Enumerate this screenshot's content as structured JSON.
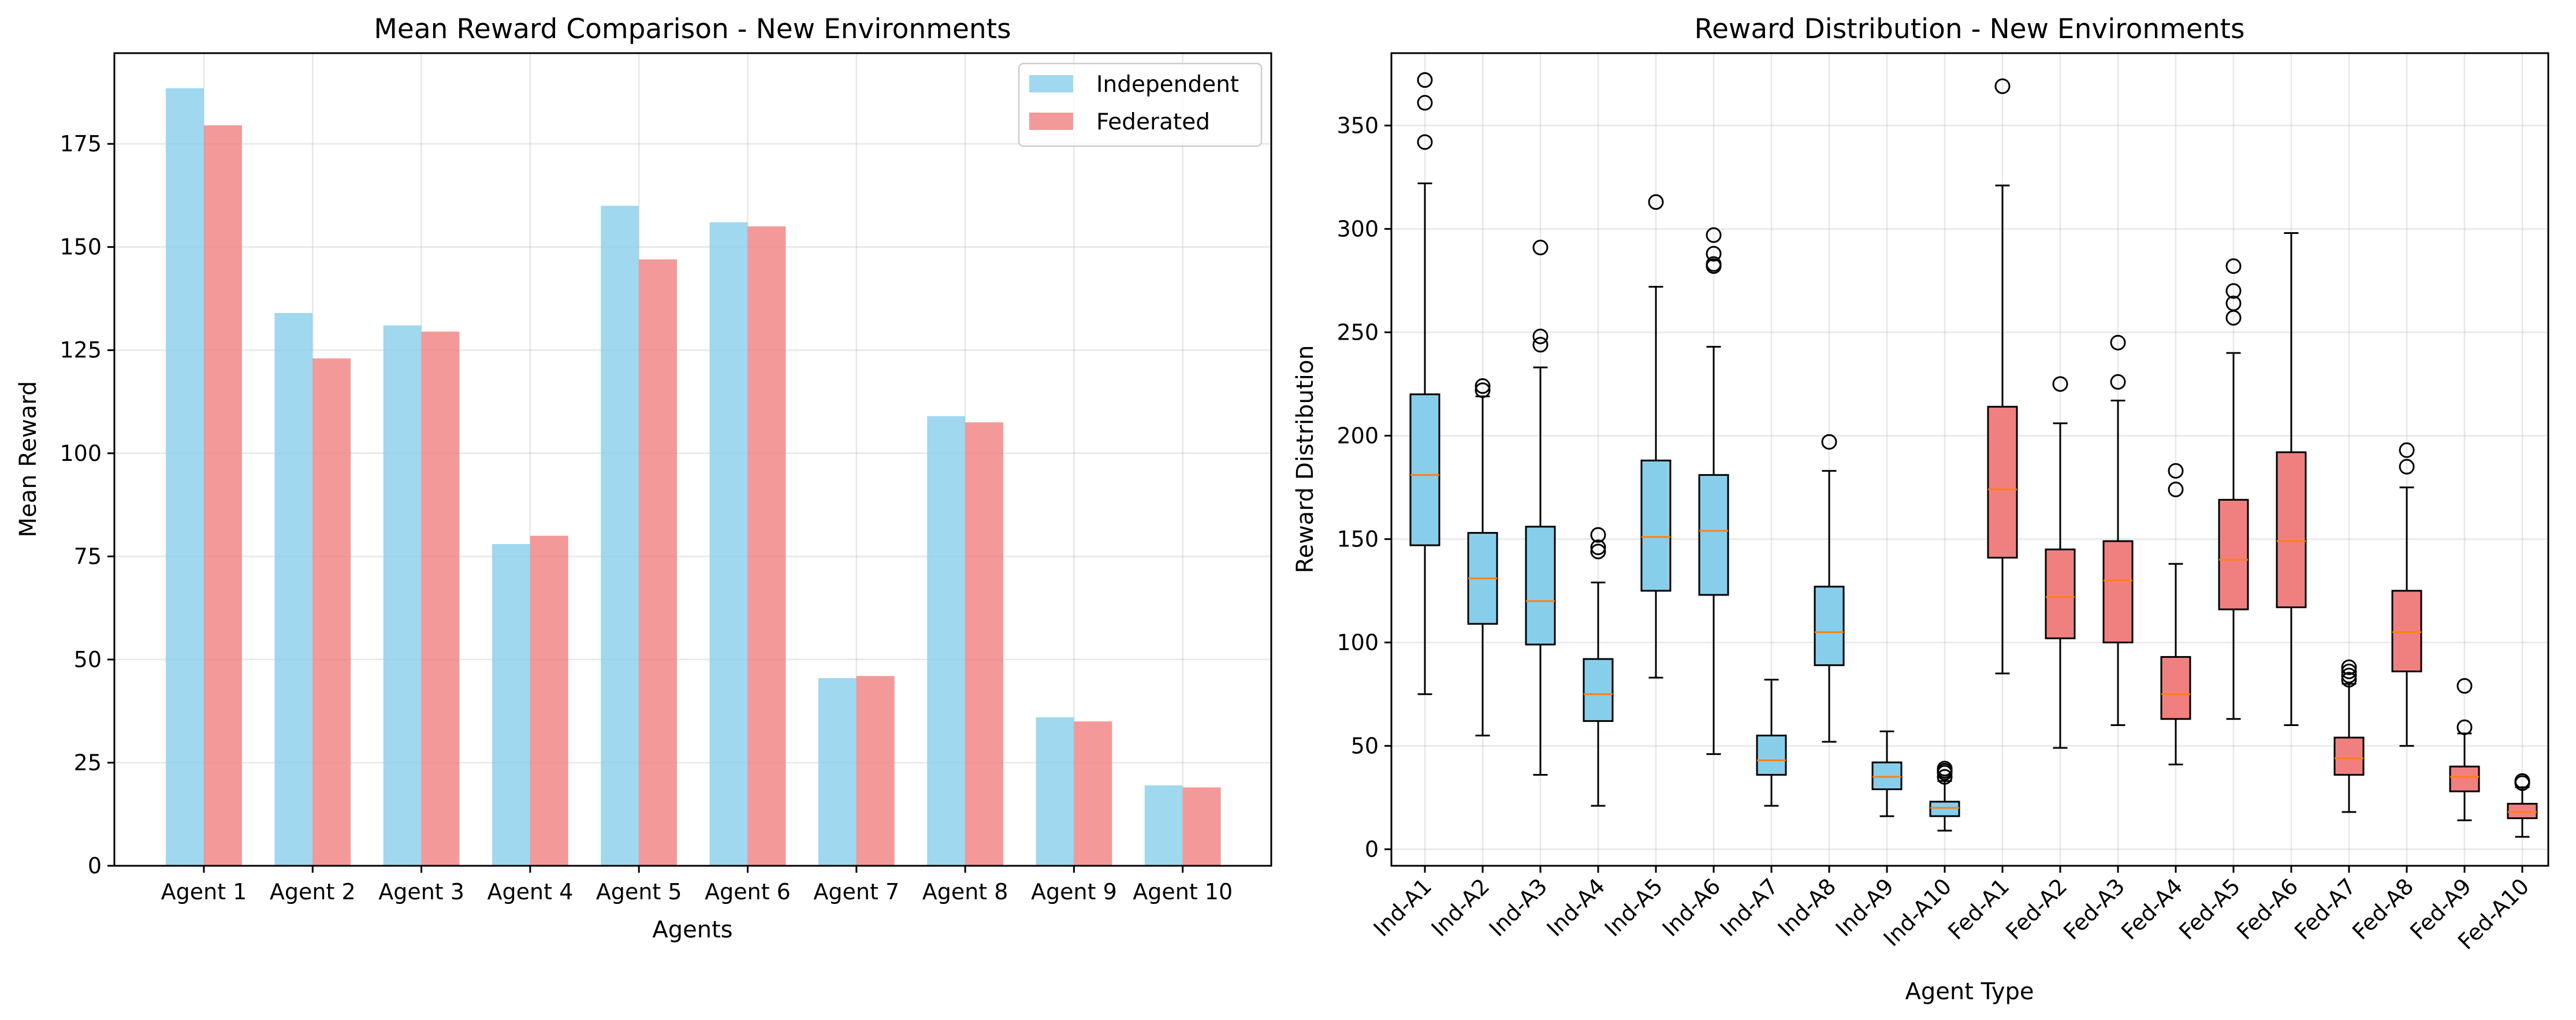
{
  "chart_data": [
    {
      "type": "bar",
      "title": "Mean Reward Comparison - New Environments",
      "xlabel": "Agents",
      "ylabel": "Mean Reward",
      "categories": [
        "Agent 1",
        "Agent 2",
        "Agent 3",
        "Agent 4",
        "Agent 5",
        "Agent 6",
        "Agent 7",
        "Agent 8",
        "Agent 9",
        "Agent 10"
      ],
      "series": [
        {
          "name": "Independent",
          "color": "#87ceeb",
          "values": [
            188.5,
            134,
            131,
            78,
            160,
            156,
            45.5,
            109,
            36,
            19.5
          ]
        },
        {
          "name": "Federated",
          "color": "#f08080",
          "values": [
            179.5,
            123,
            129.5,
            80,
            147,
            155,
            46,
            107.5,
            35,
            19
          ]
        }
      ],
      "ylim": [
        0,
        197
      ],
      "yticks": [
        0,
        25,
        50,
        75,
        100,
        125,
        150,
        175
      ],
      "grid": true,
      "legend": "top-right"
    },
    {
      "type": "box",
      "title": "Reward Distribution - New Environments",
      "xlabel": "Agent Type",
      "ylabel": "Reward Distribution",
      "ylim": [
        -8,
        385
      ],
      "yticks": [
        0,
        50,
        100,
        150,
        200,
        250,
        300,
        350
      ],
      "grid": true,
      "median_color": "#ff7f0e",
      "boxes": [
        {
          "label": "Ind-A1",
          "color": "#87ceeb",
          "whislo": 75,
          "q1": 147,
          "median": 181,
          "q3": 220,
          "whishi": 322,
          "fliers": [
            342,
            361,
            372
          ]
        },
        {
          "label": "Ind-A2",
          "color": "#87ceeb",
          "whislo": 55,
          "q1": 109,
          "median": 131,
          "q3": 153,
          "whishi": 219,
          "fliers": [
            222,
            224
          ]
        },
        {
          "label": "Ind-A3",
          "color": "#87ceeb",
          "whislo": 36,
          "q1": 99,
          "median": 120,
          "q3": 156,
          "whishi": 233,
          "fliers": [
            244,
            248,
            291
          ]
        },
        {
          "label": "Ind-A4",
          "color": "#87ceeb",
          "whislo": 21,
          "q1": 62,
          "median": 75,
          "q3": 92,
          "whishi": 129,
          "fliers": [
            144,
            146,
            152
          ]
        },
        {
          "label": "Ind-A5",
          "color": "#87ceeb",
          "whislo": 83,
          "q1": 125,
          "median": 151,
          "q3": 188,
          "whishi": 272,
          "fliers": [
            313
          ]
        },
        {
          "label": "Ind-A6",
          "color": "#87ceeb",
          "whislo": 46,
          "q1": 123,
          "median": 154,
          "q3": 181,
          "whishi": 243,
          "fliers": [
            282,
            283,
            288,
            297
          ]
        },
        {
          "label": "Ind-A7",
          "color": "#87ceeb",
          "whislo": 21,
          "q1": 36,
          "median": 43,
          "q3": 55,
          "whishi": 82,
          "fliers": []
        },
        {
          "label": "Ind-A8",
          "color": "#87ceeb",
          "whislo": 52,
          "q1": 89,
          "median": 105,
          "q3": 127,
          "whishi": 183,
          "fliers": [
            197
          ]
        },
        {
          "label": "Ind-A9",
          "color": "#87ceeb",
          "whislo": 16,
          "q1": 29,
          "median": 35,
          "q3": 42,
          "whishi": 57,
          "fliers": []
        },
        {
          "label": "Ind-A10",
          "color": "#87ceeb",
          "whislo": 9,
          "q1": 16,
          "median": 20,
          "q3": 23,
          "whishi": 33,
          "fliers": [
            35,
            37,
            38,
            39
          ]
        },
        {
          "label": "Fed-A1",
          "color": "#f08080",
          "whislo": 85,
          "q1": 141,
          "median": 174,
          "q3": 214,
          "whishi": 321,
          "fliers": [
            369
          ]
        },
        {
          "label": "Fed-A2",
          "color": "#f08080",
          "whislo": 49,
          "q1": 102,
          "median": 122,
          "q3": 145,
          "whishi": 206,
          "fliers": [
            225
          ]
        },
        {
          "label": "Fed-A3",
          "color": "#f08080",
          "whislo": 60,
          "q1": 100,
          "median": 130,
          "q3": 149,
          "whishi": 217,
          "fliers": [
            226,
            245
          ]
        },
        {
          "label": "Fed-A4",
          "color": "#f08080",
          "whislo": 41,
          "q1": 63,
          "median": 75,
          "q3": 93,
          "whishi": 138,
          "fliers": [
            174,
            183
          ]
        },
        {
          "label": "Fed-A5",
          "color": "#f08080",
          "whislo": 63,
          "q1": 116,
          "median": 140,
          "q3": 169,
          "whishi": 240,
          "fliers": [
            257,
            264,
            270,
            282
          ]
        },
        {
          "label": "Fed-A6",
          "color": "#f08080",
          "whislo": 60,
          "q1": 117,
          "median": 149,
          "q3": 192,
          "whishi": 298,
          "fliers": []
        },
        {
          "label": "Fed-A7",
          "color": "#f08080",
          "whislo": 18,
          "q1": 36,
          "median": 44,
          "q3": 54,
          "whishi": 80,
          "fliers": [
            82,
            84,
            86,
            88
          ]
        },
        {
          "label": "Fed-A8",
          "color": "#f08080",
          "whislo": 50,
          "q1": 86,
          "median": 105,
          "q3": 125,
          "whishi": 175,
          "fliers": [
            185,
            193
          ]
        },
        {
          "label": "Fed-A9",
          "color": "#f08080",
          "whislo": 14,
          "q1": 28,
          "median": 35,
          "q3": 40,
          "whishi": 56,
          "fliers": [
            59,
            79
          ]
        },
        {
          "label": "Fed-A10",
          "color": "#f08080",
          "whislo": 6,
          "q1": 15,
          "median": 18,
          "q3": 22,
          "whishi": 30,
          "fliers": [
            32,
            33
          ]
        }
      ]
    }
  ]
}
